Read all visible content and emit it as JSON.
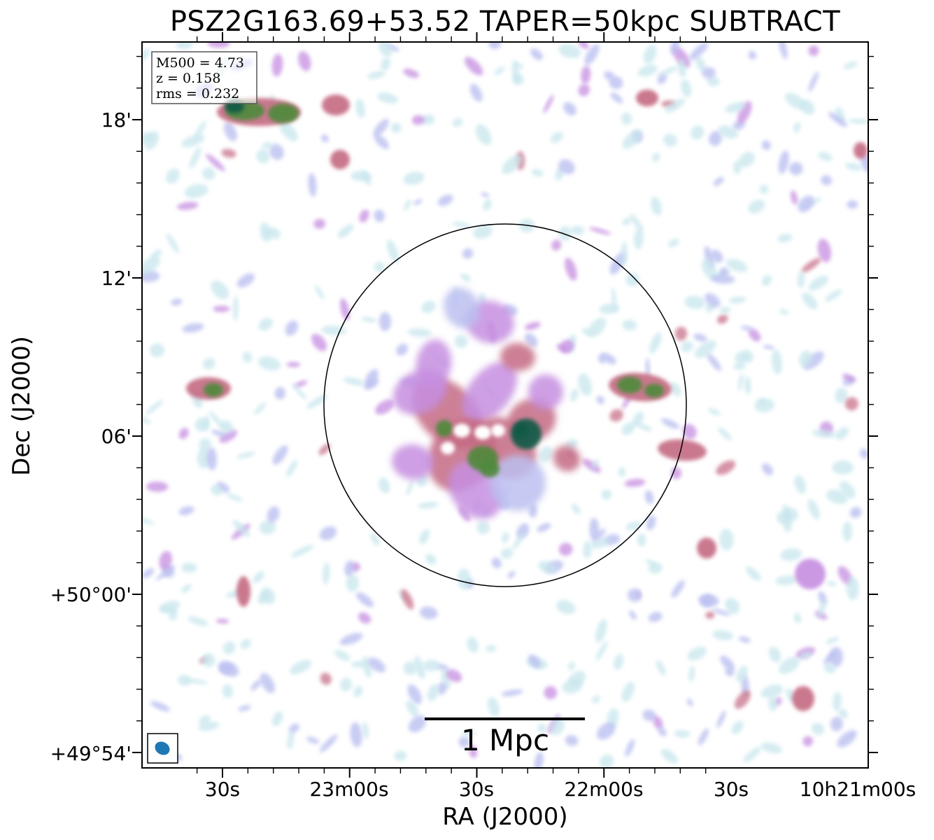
{
  "title": "PSZ2G163.69+53.52 TAPER=50kpc SUBTRACT",
  "info_box": {
    "m500": "M500 = 4.73",
    "z": "z = 0.158",
    "rms": "rms = 0.232"
  },
  "axes": {
    "xlabel": "RA (J2000)",
    "ylabel": "Dec (J2000)",
    "x_ticks": [
      "30s",
      "23m00s",
      "30s",
      "22m00s",
      "30s",
      "10h21m00s"
    ],
    "y_ticks": [
      "18'",
      "12'",
      "06'",
      "+50°00'",
      "+49°54'"
    ]
  },
  "scale_bar": {
    "label": "1 Mpc"
  },
  "colors": {
    "low": "#c7e6ec",
    "lavender": "#bcc0f0",
    "purple": "#c58ee0",
    "pink": "#c46a82",
    "green": "#4e8a3a",
    "dark_green": "#0f5a46",
    "beam": "#1f77b4"
  }
}
